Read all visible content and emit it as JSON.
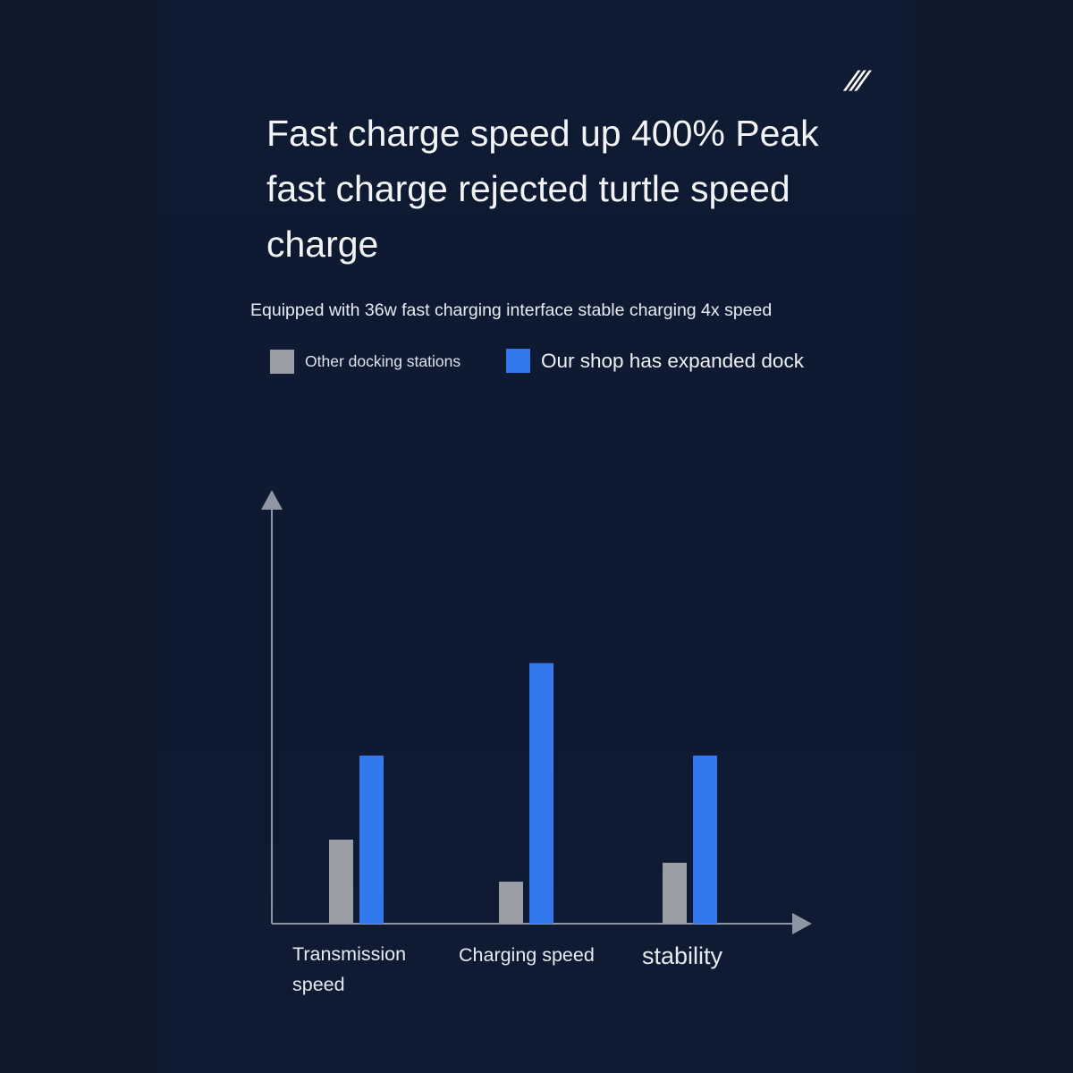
{
  "brand_mark": "///",
  "colors": {
    "background": "#101a2c",
    "panel": "#0f1b33",
    "axis": "#8e96a3",
    "other_bar": "#9a9da4",
    "ours_bar": "#3478f0"
  },
  "chart_data": {
    "type": "bar",
    "title": "Fast charge speed up 400% Peak fast charge rejected turtle speed charge",
    "subtitle": "Equipped with 36w fast charging interface stable charging 4x speed",
    "categories": [
      "Transmission speed",
      "Charging speed",
      "stability"
    ],
    "series": [
      {
        "name": "Other docking stations",
        "color": "#9a9da4",
        "values": [
          20,
          10,
          14.5
        ]
      },
      {
        "name": "Our shop has expanded dock",
        "color": "#3478f0",
        "values": [
          40,
          62,
          40
        ]
      }
    ],
    "ylim": [
      0,
      100
    ],
    "xlabel": "",
    "ylabel": "",
    "y_ticks": false,
    "grid": false,
    "legend": "top-left"
  }
}
